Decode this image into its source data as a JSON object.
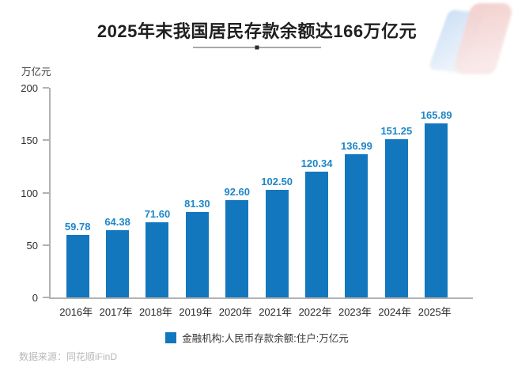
{
  "title": "2025年末我国居民存款余额达166万亿元",
  "y_axis_unit": "万亿元",
  "source": "数据来源：同花顺iFinD",
  "colors": {
    "bar": "#1377be",
    "value_label": "#1e86c8",
    "axis": "#b2b2b2",
    "title_text": "#1f1f1f",
    "source_text": "#b8b8b8"
  },
  "chart_data": {
    "type": "bar",
    "categories": [
      "2016年",
      "2017年",
      "2018年",
      "2019年",
      "2020年",
      "2021年",
      "2022年",
      "2023年",
      "2024年",
      "2025年"
    ],
    "values": [
      59.78,
      64.38,
      71.6,
      81.3,
      92.6,
      102.5,
      120.34,
      136.99,
      151.25,
      165.89
    ],
    "value_labels": [
      "59.78",
      "64.38",
      "71.60",
      "81.30",
      "92.60",
      "102.50",
      "120.34",
      "136.99",
      "151.25",
      "165.89"
    ],
    "title": "2025年末我国居民存款余额达166万亿元",
    "xlabel": "",
    "ylabel": "万亿元",
    "ylim": [
      0,
      200
    ],
    "yticks": [
      0,
      50,
      100,
      150,
      200
    ],
    "legend": [
      "金融机构:人民币存款余额:住户:万亿元"
    ],
    "legend_position": "bottom",
    "grid": false,
    "bar_color": "#1377be"
  }
}
